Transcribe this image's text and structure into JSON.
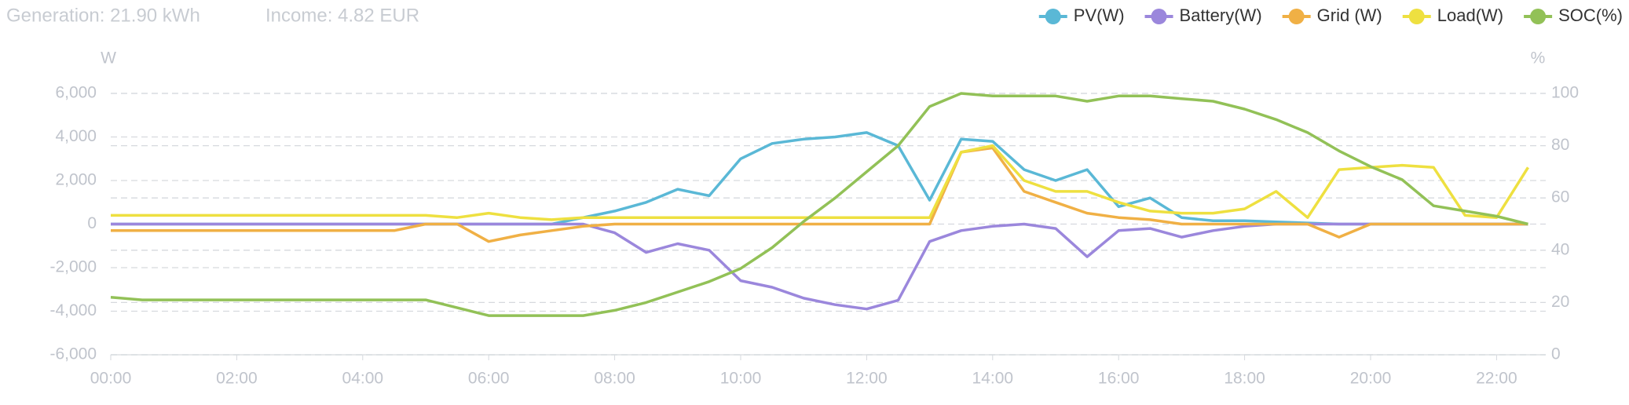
{
  "header": {
    "generation": "Generation: 21.90 kWh",
    "income": "Income: 4.82 EUR"
  },
  "chart_data": {
    "type": "line",
    "y_unit": "W",
    "y2_unit": "%",
    "x": [
      "00:00",
      "00:30",
      "01:00",
      "01:30",
      "02:00",
      "02:30",
      "03:00",
      "03:30",
      "04:00",
      "04:30",
      "05:00",
      "05:30",
      "06:00",
      "06:30",
      "07:00",
      "07:30",
      "08:00",
      "08:30",
      "09:00",
      "09:30",
      "10:00",
      "10:30",
      "11:00",
      "11:30",
      "12:00",
      "12:30",
      "13:00",
      "13:30",
      "14:00",
      "14:30",
      "15:00",
      "15:30",
      "16:00",
      "16:30",
      "17:00",
      "17:30",
      "18:00",
      "18:30",
      "19:00",
      "19:30",
      "20:00",
      "20:30",
      "21:00",
      "21:30",
      "22:00",
      "22:30"
    ],
    "xticks": [
      "00:00",
      "02:00",
      "04:00",
      "06:00",
      "08:00",
      "10:00",
      "12:00",
      "14:00",
      "16:00",
      "18:00",
      "20:00",
      "22:00"
    ],
    "ylim": [
      -6000,
      6000
    ],
    "yticks": [
      {
        "value": -6000,
        "label": "-6,000"
      },
      {
        "value": -4000,
        "label": "-4,000"
      },
      {
        "value": -2000,
        "label": "-2,000"
      },
      0,
      {
        "value": 2000,
        "label": "2,000"
      },
      {
        "value": 4000,
        "label": "4,000"
      },
      {
        "value": 6000,
        "label": "6,000"
      }
    ],
    "y2lim": [
      0,
      100
    ],
    "y2ticks": [
      0,
      20,
      40,
      60,
      80,
      100
    ],
    "grid": true,
    "legend": "top-right",
    "series": [
      {
        "name": "PV(W)",
        "color": "#5ab8d6",
        "values": [
          0,
          0,
          0,
          0,
          0,
          0,
          0,
          0,
          0,
          0,
          0,
          0,
          0,
          0,
          0,
          300,
          600,
          1000,
          1600,
          1300,
          3000,
          3700,
          3900,
          4000,
          4200,
          3600,
          1100,
          3900,
          3800,
          2500,
          2000,
          2500,
          800,
          1200,
          300,
          150,
          150,
          100,
          50,
          0,
          0,
          0,
          0,
          0,
          0,
          0
        ]
      },
      {
        "name": "Battery(W)",
        "color": "#9b87dc",
        "values": [
          0,
          0,
          0,
          0,
          0,
          0,
          0,
          0,
          0,
          0,
          0,
          0,
          0,
          0,
          0,
          0,
          -400,
          -1300,
          -900,
          -1200,
          -2600,
          -2900,
          -3400,
          -3700,
          -3900,
          -3500,
          -800,
          -300,
          -100,
          0,
          -200,
          -1500,
          -300,
          -200,
          -600,
          -300,
          -100,
          0,
          0,
          0,
          0,
          0,
          0,
          0,
          0,
          0
        ]
      },
      {
        "name": "Grid (W)",
        "color": "#f0b045",
        "values": [
          -300,
          -300,
          -300,
          -300,
          -300,
          -300,
          -300,
          -300,
          -300,
          -300,
          0,
          0,
          -800,
          -500,
          -300,
          -100,
          0,
          0,
          0,
          0,
          0,
          0,
          0,
          0,
          0,
          0,
          0,
          3300,
          3500,
          1500,
          1000,
          500,
          300,
          200,
          0,
          0,
          0,
          0,
          0,
          -600,
          0,
          0,
          0,
          0,
          0,
          0
        ]
      },
      {
        "name": "Load(W)",
        "color": "#eee040",
        "values": [
          400,
          400,
          400,
          400,
          400,
          400,
          400,
          400,
          400,
          400,
          400,
          300,
          500,
          300,
          200,
          300,
          300,
          300,
          300,
          300,
          300,
          300,
          300,
          300,
          300,
          300,
          300,
          3300,
          3600,
          2000,
          1500,
          1500,
          1000,
          600,
          500,
          500,
          700,
          1500,
          300,
          2500,
          2600,
          2700,
          2600,
          400,
          300,
          2600
        ]
      },
      {
        "name": "SOC(%)",
        "color": "#92c157",
        "axis": "y2",
        "values": [
          22,
          21,
          21,
          21,
          21,
          21,
          21,
          21,
          21,
          21,
          21,
          18,
          15,
          15,
          15,
          15,
          17,
          20,
          24,
          28,
          33,
          41,
          51,
          60,
          70,
          80,
          95,
          100,
          99,
          99,
          99,
          97,
          99,
          99,
          98,
          97,
          94,
          90,
          85,
          78,
          72,
          67,
          57,
          55,
          53,
          50
        ]
      }
    ]
  }
}
